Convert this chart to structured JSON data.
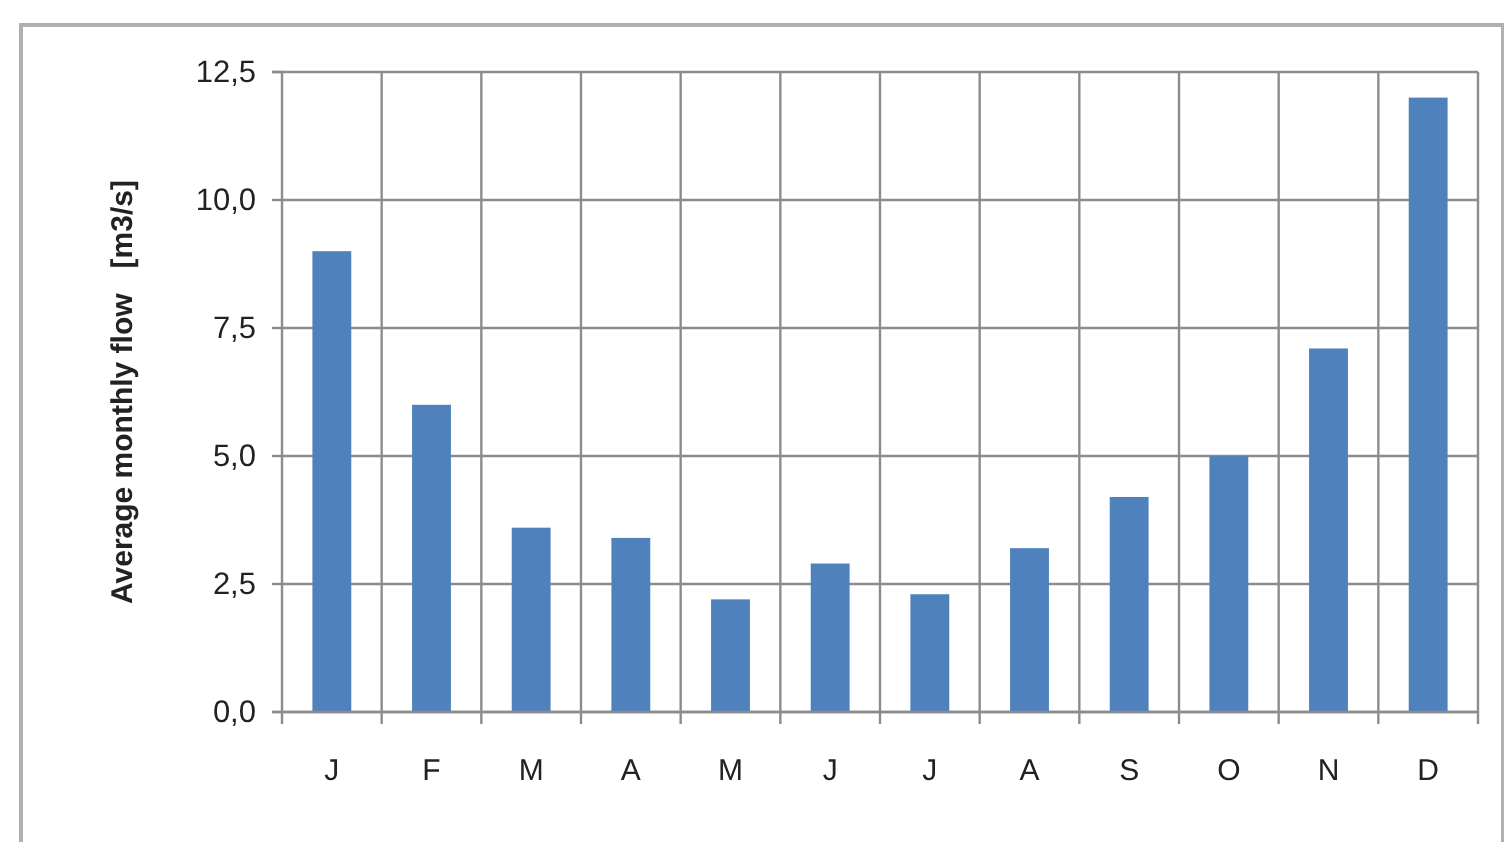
{
  "chart_data": {
    "type": "bar",
    "ylabel": "Average monthly flow   [m3/s]",
    "categories": [
      "J",
      "F",
      "M",
      "A",
      "M",
      "J",
      "J",
      "A",
      "S",
      "O",
      "N",
      "D"
    ],
    "values": [
      9.0,
      6.0,
      3.6,
      3.4,
      2.2,
      2.9,
      2.3,
      3.2,
      4.2,
      5.0,
      7.1,
      12.0
    ],
    "color": "#4f81bd",
    "ylim": [
      0,
      12.5
    ],
    "yticks": [
      {
        "value": 0,
        "label": "0,0"
      },
      {
        "value": 2.5,
        "label": "2,5"
      },
      {
        "value": 5,
        "label": "5,0"
      },
      {
        "value": 7.5,
        "label": "7,5"
      },
      {
        "value": 10,
        "label": "10,0"
      },
      {
        "value": 12.5,
        "label": "12,5"
      }
    ],
    "grid": true,
    "legend": false
  }
}
